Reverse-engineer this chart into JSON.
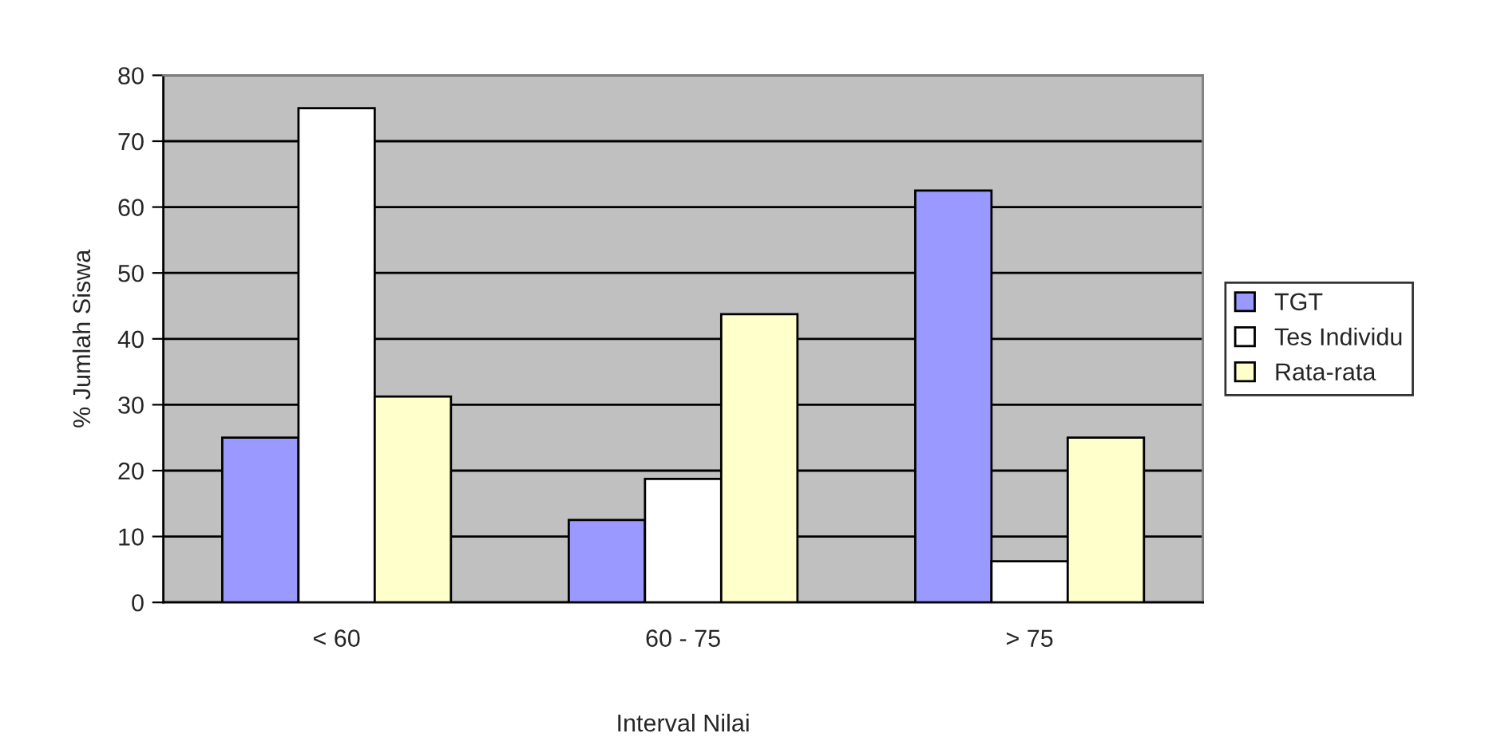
{
  "chart_data": {
    "type": "bar",
    "xlabel": "Interval Nilai",
    "ylabel": "% Jumlah Siswa",
    "categories": [
      "< 60",
      "60 - 75",
      "> 75"
    ],
    "series": [
      {
        "name": "TGT",
        "color": "#9999ff",
        "values": [
          25,
          12.5,
          62.5
        ]
      },
      {
        "name": "Tes Individu",
        "color": "#ffffff",
        "values": [
          75,
          18.75,
          6.25
        ]
      },
      {
        "name": "Rata-rata",
        "color": "#ffffcc",
        "values": [
          31.25,
          43.75,
          25
        ]
      }
    ],
    "ylim": [
      0,
      80
    ],
    "yticks": [
      0,
      10,
      20,
      30,
      40,
      50,
      60,
      70,
      80
    ],
    "grid": "y",
    "legend": "right"
  }
}
